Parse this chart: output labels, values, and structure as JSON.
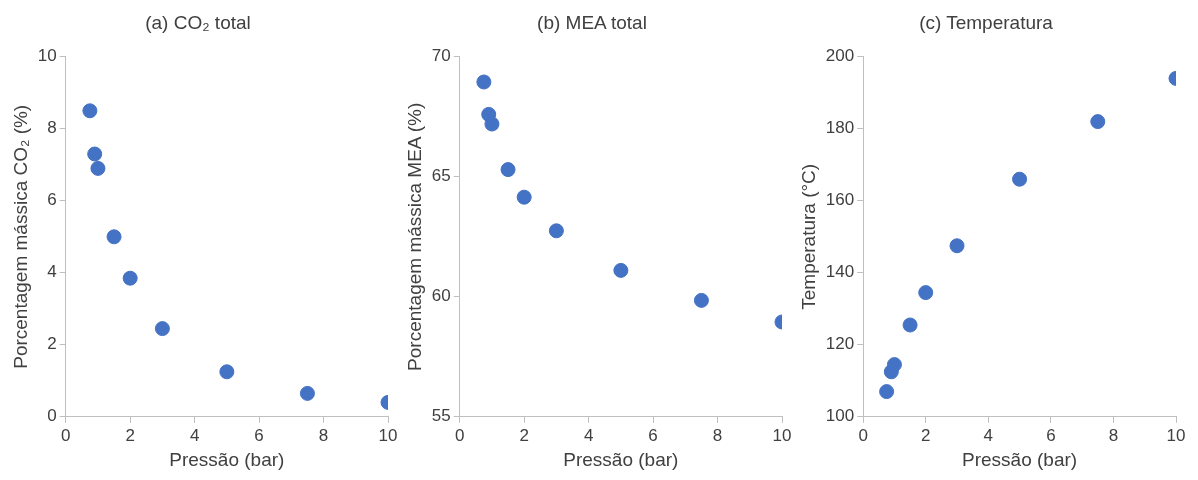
{
  "chart_data": [
    {
      "type": "scatter",
      "title": "(a) CO₂ total",
      "xlabel": "Pressão (bar)",
      "ylabel": "Porcentagem mássica CO₂ (%)",
      "x": [
        0.75,
        0.9,
        1,
        1.5,
        2,
        3,
        5,
        7.5,
        10
      ],
      "values": [
        8.5,
        7.3,
        6.9,
        5.0,
        3.85,
        2.45,
        1.25,
        0.65,
        0.4
      ],
      "color": "#4472c4",
      "marker": "circle",
      "xlim": [
        0,
        10
      ],
      "xticks": [
        0,
        2,
        4,
        6,
        8,
        10
      ],
      "ylim": [
        0,
        10
      ],
      "yticks": [
        0,
        2,
        4,
        6,
        8,
        10
      ]
    },
    {
      "type": "scatter",
      "title": "(b) MEA total",
      "xlabel": "Pressão (bar)",
      "ylabel": "Porcentagem mássica MEA (%)",
      "x": [
        0.75,
        0.9,
        1,
        1.5,
        2,
        3,
        5,
        7.5,
        10
      ],
      "values": [
        68.95,
        67.6,
        67.2,
        65.3,
        64.15,
        62.75,
        61.1,
        59.85,
        58.95
      ],
      "color": "#4472c4",
      "marker": "circle",
      "xlim": [
        0,
        10
      ],
      "xticks": [
        0,
        2,
        4,
        6,
        8,
        10
      ],
      "ylim": [
        55,
        70
      ],
      "yticks": [
        55,
        60,
        65,
        70
      ]
    },
    {
      "type": "scatter",
      "title": "(c) Temperatura",
      "xlabel": "Pressão (bar)",
      "ylabel": "Temperatura (°C)",
      "x": [
        0.75,
        0.9,
        1,
        1.5,
        2,
        3,
        5,
        7.5,
        10
      ],
      "values": [
        107,
        112.5,
        114.5,
        125.5,
        134.5,
        147.5,
        166,
        182,
        194
      ],
      "color": "#4472c4",
      "marker": "circle",
      "xlim": [
        0,
        10
      ],
      "xticks": [
        0,
        2,
        4,
        6,
        8,
        10
      ],
      "ylim": [
        100,
        200
      ],
      "yticks": [
        100,
        120,
        140,
        160,
        180,
        200
      ]
    }
  ]
}
